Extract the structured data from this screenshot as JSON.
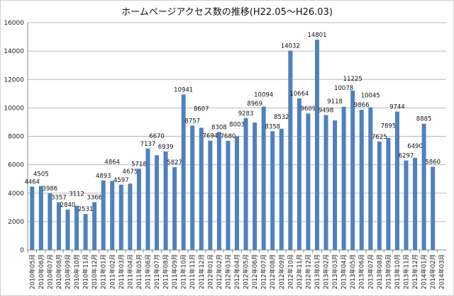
{
  "chart_data": {
    "type": "bar",
    "title": "ホームページアクセス数の推移(H22.05～H26.03)",
    "xlabel": "",
    "ylabel": "",
    "ylim": [
      0,
      16000
    ],
    "yticks": [
      0,
      2000,
      4000,
      6000,
      8000,
      10000,
      12000,
      14000,
      16000
    ],
    "grid": true,
    "legend": "none",
    "bar_color": "#4f81bd",
    "categories": [
      "2010年05月",
      "2010年06月",
      "2010年07月",
      "2010年08月",
      "2010年09月",
      "2010年10月",
      "2010年11月",
      "2010年12月",
      "2011年01月",
      "2011年02月",
      "2011年03月",
      "2011年04月",
      "2011年05月",
      "2011年06月",
      "2011年07月",
      "2011年08月",
      "2011年09月",
      "2011年10月",
      "2011年11月",
      "2011年12月",
      "2012年01月",
      "2012年02月",
      "2012年03月",
      "2012年04月",
      "2012年05月",
      "2012年06月",
      "2012年07月",
      "2012年08月",
      "2012年09月",
      "2012年10月",
      "2012年11月",
      "2012年12月",
      "2013年01月",
      "2013年02月",
      "2013年03月",
      "2013年04月",
      "2013年05月",
      "2013年06月",
      "2013年07月",
      "2013年08月",
      "2013年09月",
      "2013年10月",
      "2013年11月",
      "2013年12月",
      "2014年01月",
      "2014年02月",
      "2014年03月"
    ],
    "values": [
      4464,
      4505,
      3986,
      3357,
      2840,
      3112,
      2531,
      3366,
      4893,
      4864,
      4597,
      4675,
      5718,
      7137,
      6670,
      6939,
      5827,
      10941,
      8757,
      8607,
      7694,
      8308,
      7680,
      8003,
      9283,
      8969,
      10094,
      8358,
      8532,
      14032,
      10664,
      9609,
      14801,
      9498,
      9118,
      10078,
      11225,
      9866,
      10045,
      7625,
      7895,
      9744,
      6297,
      6490,
      8885,
      5860,
      null
    ]
  }
}
